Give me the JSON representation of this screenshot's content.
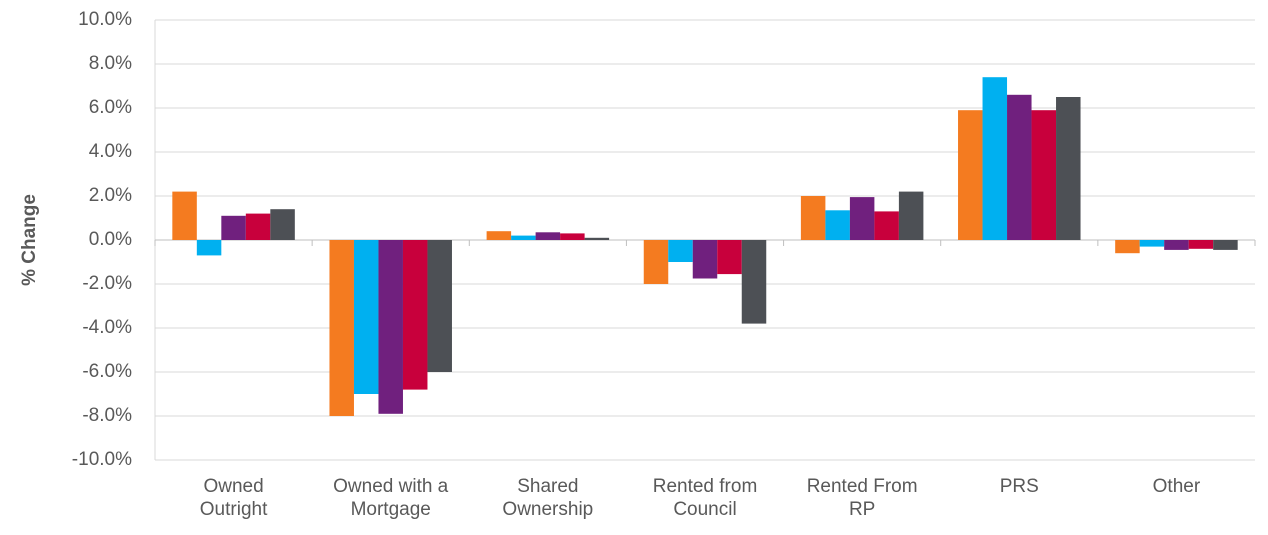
{
  "chart_data": {
    "type": "bar",
    "y_label": "% Change",
    "categories": [
      "Owned Outright",
      "Owned with a Mortgage",
      "Shared Ownership",
      "Rented from Council",
      "Rented From RP",
      "PRS",
      "Other"
    ],
    "series": [
      {
        "color": "#f47b20",
        "values": [
          2.2,
          -8.0,
          0.4,
          -2.0,
          2.0,
          5.9,
          -0.6
        ]
      },
      {
        "color": "#00b0f0",
        "values": [
          -0.7,
          -7.0,
          0.2,
          -1.0,
          1.35,
          7.4,
          -0.3
        ]
      },
      {
        "color": "#70207e",
        "values": [
          1.1,
          -7.9,
          0.35,
          -1.75,
          1.95,
          6.6,
          -0.45
        ]
      },
      {
        "color": "#c8003c",
        "values": [
          1.2,
          -6.8,
          0.3,
          -1.55,
          1.3,
          5.9,
          -0.4
        ]
      },
      {
        "color": "#4d5055",
        "values": [
          1.4,
          -6.0,
          0.1,
          -3.8,
          2.2,
          6.5,
          -0.45
        ]
      }
    ],
    "ylim": [
      -10,
      10
    ],
    "yticks": [
      {
        "value": -10,
        "label": "-10.0%"
      },
      {
        "value": -8,
        "label": "-8.0%"
      },
      {
        "value": -6,
        "label": "-6.0%"
      },
      {
        "value": -4,
        "label": "-4.0%"
      },
      {
        "value": -2,
        "label": "-2.0%"
      },
      {
        "value": 0,
        "label": "0.0%"
      },
      {
        "value": 2,
        "label": "2.0%"
      },
      {
        "value": 4,
        "label": "4.0%"
      },
      {
        "value": 6,
        "label": "6.0%"
      },
      {
        "value": 8,
        "label": "8.0%"
      },
      {
        "value": 10,
        "label": "10.0%"
      }
    ],
    "grid": true
  }
}
